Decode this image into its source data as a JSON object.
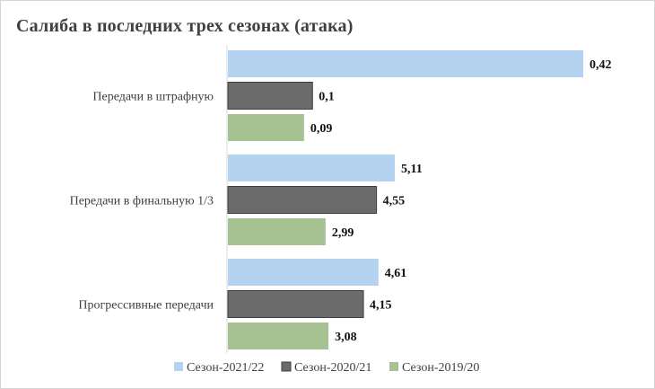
{
  "chart_data": {
    "type": "bar",
    "orientation": "horizontal",
    "title": "Салиба в последних трех сезонах (атака)",
    "categories": [
      "Передачи в штрафную",
      "Передачи в финальную 1/3",
      "Прогрессивные передачи"
    ],
    "series": [
      {
        "name": "Сезон-2021/22",
        "color": "#b4d3f0",
        "values": [
          0.42,
          5.11,
          4.61
        ],
        "labels": [
          "0,42",
          "5,11",
          "4,61"
        ]
      },
      {
        "name": "Сезон-2020/21",
        "color": "#6b6b6b",
        "values": [
          0.1,
          4.55,
          4.15
        ],
        "labels": [
          "0,1",
          "4,55",
          "4,15"
        ]
      },
      {
        "name": "Сезон-2019/20",
        "color": "#a6c293",
        "values": [
          0.09,
          2.99,
          3.08
        ],
        "labels": [
          "0,09",
          "2,99",
          "3,08"
        ]
      }
    ],
    "legend_position": "bottom",
    "grid": false
  }
}
